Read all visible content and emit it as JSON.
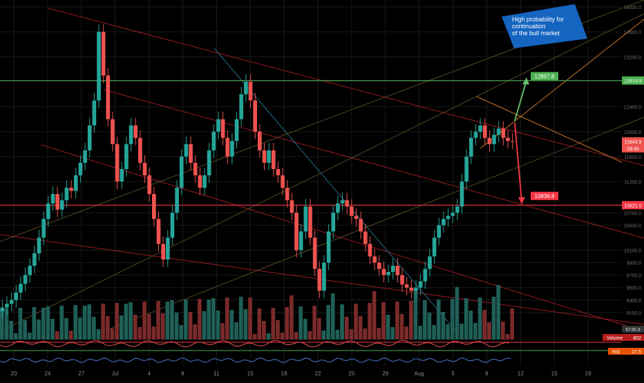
{
  "annotation": {
    "lines": [
      "High probability for",
      "continuation",
      "of the bull market"
    ],
    "color": "#1565c0"
  },
  "colors": {
    "up": "#26a69a",
    "down": "#ef5350",
    "support": "#f23645",
    "resistance": "#4caf50",
    "grid": "#1a1a1a"
  },
  "chart_data": {
    "type": "candlestick",
    "price_axis": {
      "ylim": [
        8800,
        14000
      ],
      "ticks": [
        14000,
        13600,
        13200,
        12800,
        12400,
        12000,
        11600,
        11200,
        10700,
        10500,
        10100,
        9900,
        9700,
        9500,
        9300,
        9100
      ]
    },
    "x_axis": {
      "ticks": [
        "20",
        "24",
        "27",
        "Jul",
        "4",
        "8",
        "11",
        "15",
        "18",
        "22",
        "25",
        "29",
        "Aug",
        "5",
        "8",
        "12",
        "15",
        "19"
      ]
    },
    "horizontal_levels": [
      {
        "value": 12819.9,
        "label": "12819.9",
        "color": "#4caf50"
      },
      {
        "value": 10821.0,
        "label": "10821.0",
        "color": "#f23645"
      }
    ],
    "current_price": {
      "value": 11843.9,
      "label": "11843.9",
      "countdown": "28:45"
    },
    "targets": [
      {
        "value": 12867.8,
        "label": "12867.8",
        "direction": "up",
        "color": "#4caf50"
      },
      {
        "value": 10836.8,
        "label": "10836.8",
        "direction": "down",
        "color": "#f23645"
      }
    ],
    "closes": [
      9180,
      9240,
      9300,
      9420,
      9560,
      9700,
      9850,
      10050,
      10300,
      10600,
      10850,
      11000,
      10750,
      10900,
      11100,
      11050,
      11300,
      11500,
      11700,
      12100,
      12500,
      13600,
      12900,
      12200,
      11800,
      11200,
      11400,
      11800,
      12100,
      11900,
      11500,
      11300,
      11000,
      10600,
      10200,
      9950,
      10300,
      10700,
      11100,
      11600,
      11800,
      11500,
      11300,
      11100,
      11300,
      11700,
      12000,
      12200,
      11900,
      11600,
      11850,
      12200,
      12600,
      12800,
      12500,
      12000,
      11700,
      11500,
      11700,
      11400,
      11300,
      11100,
      10900,
      10700,
      10100,
      10400,
      10800,
      10300,
      9800,
      9450,
      9900,
      10400,
      10700,
      10850,
      10900,
      10800,
      10650,
      10600,
      10400,
      10200,
      10000,
      9900,
      9800,
      9700,
      9750,
      9850,
      9700,
      9550,
      9500,
      9450,
      9500,
      9600,
      9800,
      10000,
      10300,
      10500,
      10600,
      10650,
      10700,
      10800,
      11200,
      11600,
      11900,
      12000,
      12100,
      11900,
      11800,
      11950,
      12050,
      11900,
      11850,
      11843.9
    ],
    "indicators": {
      "volume": {
        "label": "Volume",
        "value": "802",
        "ma_value": "6735.9"
      },
      "rsi": {
        "label": "RSI",
        "value": "27.5"
      }
    }
  }
}
